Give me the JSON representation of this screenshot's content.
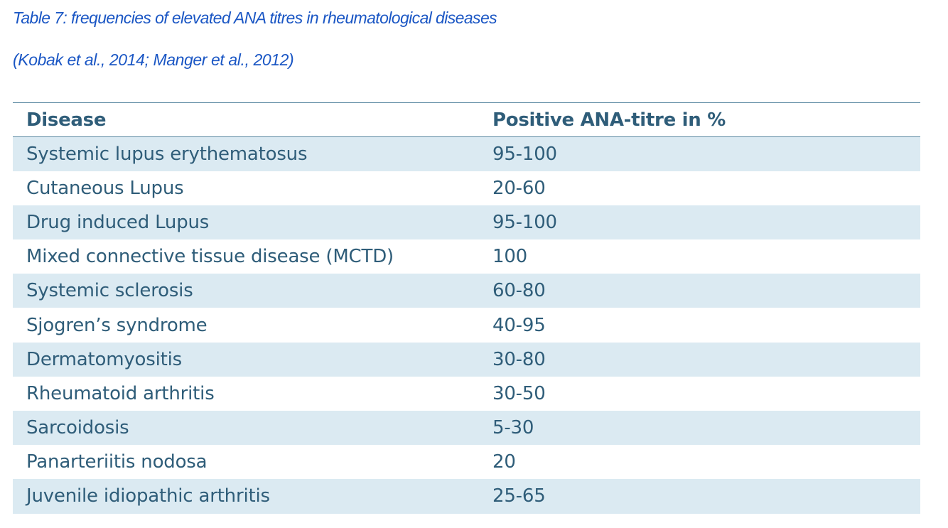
{
  "caption": "Table 7: frequencies of elevated ANA titres in rheumatological diseases",
  "source": "(Kobak et al., 2014; Manger et al., 2012)",
  "table": {
    "headers": {
      "disease": "Disease",
      "value": "Positive ANA-titre in %"
    },
    "rows": [
      {
        "disease": "Systemic lupus erythematosus",
        "value": "95-100"
      },
      {
        "disease": "Cutaneous Lupus",
        "value": "20-60"
      },
      {
        "disease": "Drug induced Lupus",
        "value": "95-100"
      },
      {
        "disease": "Mixed connective tissue disease (MCTD)",
        "value": "100"
      },
      {
        "disease": "Systemic sclerosis",
        "value": "60-80"
      },
      {
        "disease": "Sjogren’s syndrome",
        "value": "40-95"
      },
      {
        "disease": "Dermatomyositis",
        "value": "30-80"
      },
      {
        "disease": "Rheumatoid arthritis",
        "value": "30-50"
      },
      {
        "disease": "Sarcoidosis",
        "value": "5-30"
      },
      {
        "disease": "Panarteriitis nodosa",
        "value": "20"
      },
      {
        "disease": "Juvenile idiopathic arthritis",
        "value": "25-65"
      }
    ]
  },
  "colors": {
    "caption_text": "#1a56c4",
    "table_text": "#2f5d79",
    "stripe": "#dbeaf2",
    "rule": "#5d8aa3"
  }
}
